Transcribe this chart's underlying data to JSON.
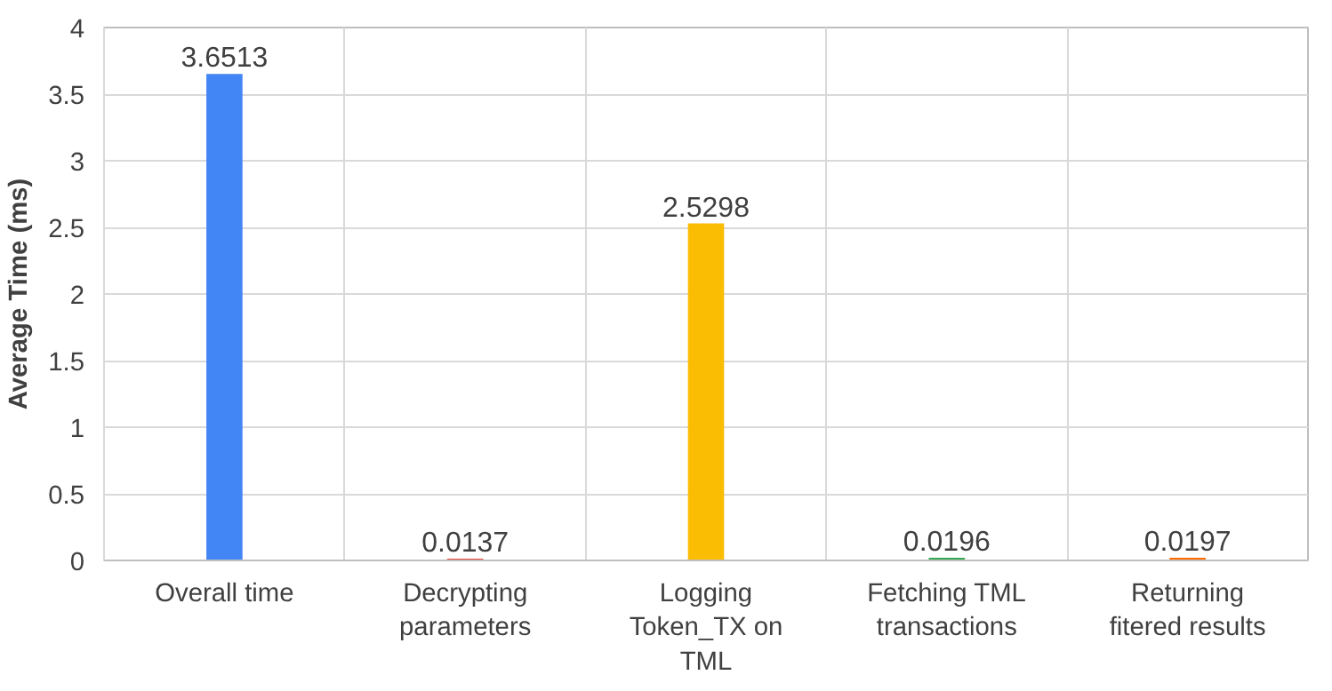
{
  "chart_data": {
    "type": "bar",
    "ylabel": "Average Time (ms)",
    "categories": [
      "Overall time",
      "Decrypting\nparameters",
      "Logging\nToken_TX on\nTML",
      "Fetching TML\ntransactions",
      "Returning\nfitered results"
    ],
    "values": [
      3.6513,
      0.0137,
      2.5298,
      0.0196,
      0.0197
    ],
    "colors": [
      "#4285f4",
      "#ea4335",
      "#fbbc04",
      "#34a853",
      "#ff6d01"
    ],
    "ylim": [
      0,
      4
    ],
    "yticks": [
      0,
      0.5,
      1,
      1.5,
      2,
      2.5,
      3,
      3.5,
      4
    ],
    "grid": true,
    "data_labels": true
  }
}
